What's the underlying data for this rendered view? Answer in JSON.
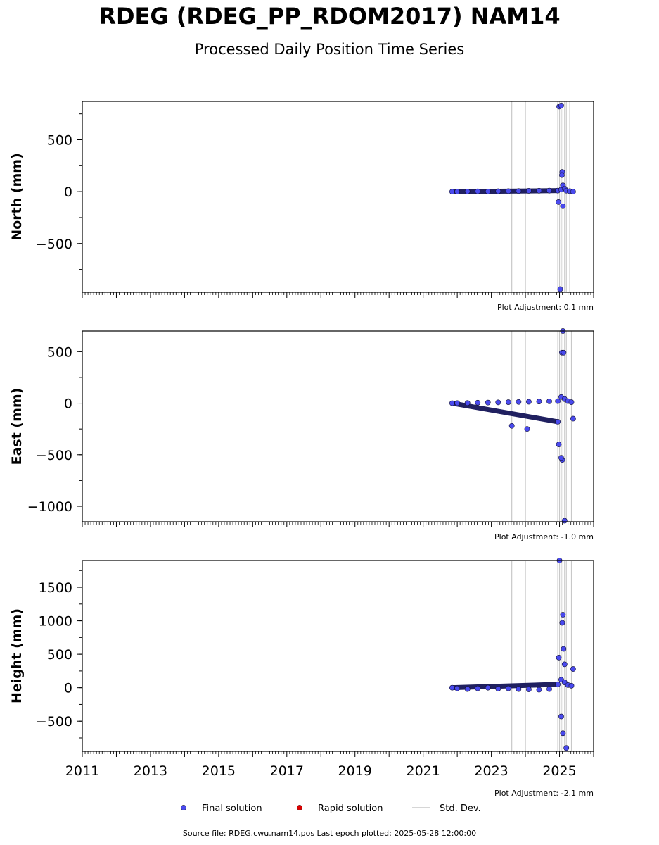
{
  "header": {
    "title": "RDEG (RDEG_PP_RDOM2017) NAM14",
    "subtitle": "Processed Daily Position Time Series"
  },
  "footer": {
    "source": "Source file: RDEG.cwu.nam14.pos  Last epoch plotted: 2025-05-28 12:00:00"
  },
  "legend": {
    "final": "Final solution",
    "rapid": "Rapid solution",
    "std": "Std. Dev."
  },
  "colors": {
    "final": "#4a4aee",
    "final_edge": "#111133",
    "rapid": "#dd0000",
    "std": "#c8c8c8"
  },
  "chart_data": [
    {
      "type": "scatter",
      "ylabel": "North (mm)",
      "adjustment": "Plot Adjustment: 0.1 mm",
      "xlim": [
        2011,
        2026
      ],
      "ylim": [
        -970,
        870
      ],
      "yticks": [
        -500,
        0,
        500
      ],
      "ytick_labels": [
        "−500",
        "0",
        "500"
      ],
      "xticks": [],
      "x": [
        2021.85,
        2022.0,
        2022.3,
        2022.6,
        2022.9,
        2023.2,
        2023.5,
        2023.8,
        2024.1,
        2024.4,
        2024.7,
        2024.95,
        2025.05,
        2025.1,
        2025.15,
        2025.2,
        2025.3,
        2025.4,
        2024.99,
        2025.05,
        2025.08,
        2025.07,
        2024.97,
        2025.1,
        2025.02
      ],
      "y": [
        0,
        1,
        2,
        3,
        2,
        4,
        5,
        6,
        8,
        9,
        10,
        10,
        20,
        60,
        30,
        10,
        5,
        0,
        820,
        830,
        190,
        160,
        -100,
        -140,
        -940
      ],
      "std_dev_x": [
        2023.6,
        2024.0,
        2024.95,
        2025.0,
        2025.05,
        2025.1,
        2025.15,
        2025.2,
        2025.3
      ]
    },
    {
      "type": "scatter",
      "ylabel": "East (mm)",
      "adjustment": "Plot Adjustment: -1.0 mm",
      "xlim": [
        2011,
        2026
      ],
      "ylim": [
        -1150,
        700
      ],
      "yticks": [
        -1000,
        -500,
        0,
        500
      ],
      "ytick_labels": [
        "−1000",
        "−500",
        "0",
        "500"
      ],
      "xticks": [],
      "x": [
        2021.85,
        2022.0,
        2022.3,
        2022.6,
        2022.9,
        2023.2,
        2023.5,
        2023.8,
        2024.1,
        2024.4,
        2024.7,
        2024.95,
        2025.05,
        2025.15,
        2025.25,
        2025.35,
        2023.6,
        2024.05,
        2025.1,
        2025.07,
        2025.12,
        2024.98,
        2025.08,
        2025.05,
        2024.95,
        2025.15,
        2025.4
      ],
      "y": [
        0,
        1,
        2,
        5,
        6,
        8,
        10,
        12,
        14,
        16,
        18,
        20,
        60,
        40,
        20,
        10,
        -220,
        -250,
        700,
        490,
        490,
        -400,
        -550,
        -530,
        -180,
        -1140,
        -150
      ],
      "std_dev_x": [
        2023.6,
        2024.0,
        2024.95,
        2025.0,
        2025.05,
        2025.1,
        2025.15,
        2025.2,
        2025.35
      ]
    },
    {
      "type": "scatter",
      "ylabel": "Height (mm)",
      "adjustment": "Plot Adjustment: -2.1 mm",
      "xlim": [
        2011,
        2026
      ],
      "ylim": [
        -950,
        1900
      ],
      "yticks": [
        -500,
        0,
        500,
        1000,
        1500
      ],
      "ytick_labels": [
        "−500",
        "0",
        "500",
        "1000",
        "1500"
      ],
      "xticks": [
        2011,
        2013,
        2015,
        2017,
        2019,
        2021,
        2023,
        2025
      ],
      "xtick_labels": [
        "2011",
        "2013",
        "2015",
        "2017",
        "2019",
        "2021",
        "2023",
        "2025"
      ],
      "x": [
        2021.85,
        2022.0,
        2022.3,
        2022.6,
        2022.9,
        2023.2,
        2023.5,
        2023.8,
        2024.1,
        2024.4,
        2024.7,
        2024.95,
        2025.05,
        2025.15,
        2025.25,
        2025.35,
        2025.0,
        2025.1,
        2025.08,
        2025.12,
        2025.15,
        2024.98,
        2025.05,
        2025.1,
        2025.2,
        2025.4
      ],
      "y": [
        0,
        -10,
        -20,
        -10,
        0,
        -15,
        -10,
        -20,
        -25,
        -30,
        -20,
        50,
        120,
        80,
        40,
        30,
        1900,
        1090,
        970,
        580,
        350,
        450,
        -430,
        -680,
        -900,
        280
      ],
      "std_dev_x": [
        2023.6,
        2024.0,
        2024.95,
        2025.0,
        2025.05,
        2025.1,
        2025.15,
        2025.2,
        2025.35
      ]
    }
  ]
}
